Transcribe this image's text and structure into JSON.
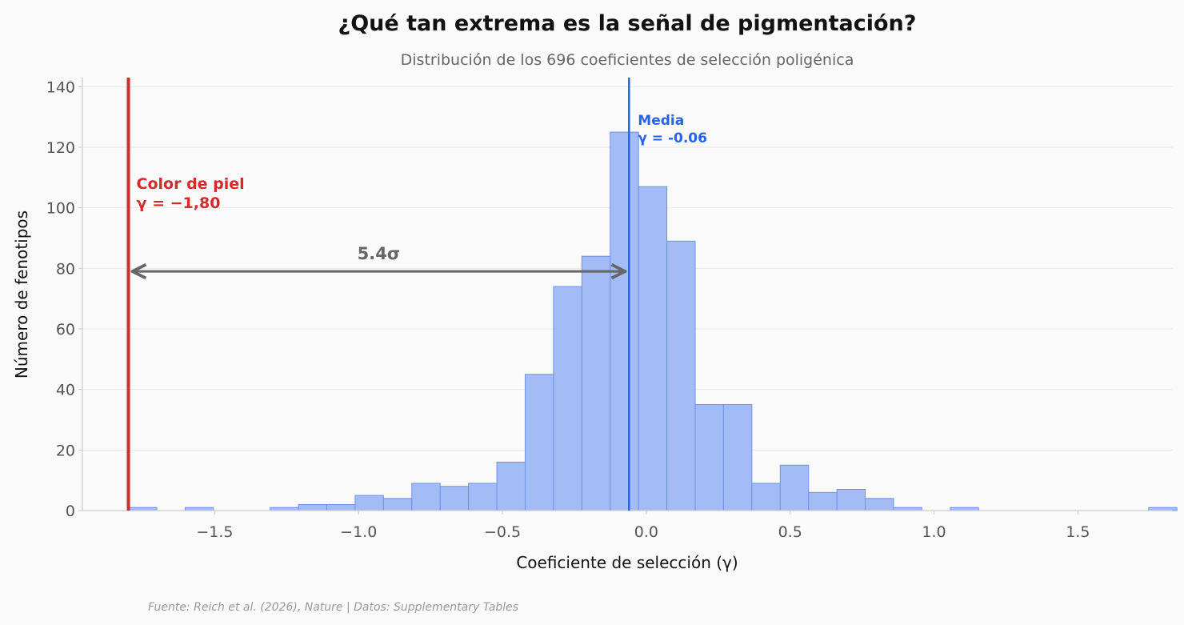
{
  "title": "¿Qué tan extrema es la señal de pigmentación?",
  "subtitle": "Distribución de los 696 coeficientes de selección poligénica",
  "source": "Fuente: Reich et al. (2026), Nature | Datos: Supplementary Tables",
  "colors": {
    "bar_fill": "#a4bcf5",
    "bar_stroke": "#6d93ec",
    "mean_line": "#2563eb",
    "highlight": "#d42a2a",
    "arrow": "#666666",
    "grid": "#ebebeb",
    "axis": "#cccccc",
    "tick_text": "#555555"
  },
  "chart_data": {
    "type": "histogram",
    "xlabel": "Coeficiente de selección (γ)",
    "ylabel": "Número de fenotipos",
    "xlim": [
      -1.96,
      1.83
    ],
    "ylim": [
      0,
      143
    ],
    "bin_width": 0.0985,
    "bin_start": -1.8,
    "counts": [
      1,
      0,
      1,
      0,
      0,
      1,
      2,
      2,
      5,
      4,
      9,
      8,
      9,
      16,
      45,
      74,
      84,
      125,
      107,
      89,
      35,
      35,
      9,
      15,
      6,
      7,
      4,
      1,
      0,
      1,
      0,
      0,
      0,
      0,
      0,
      0,
      1
    ],
    "x_ticks": [
      {
        "value": -1.5,
        "label": "−1.5"
      },
      {
        "value": -1.0,
        "label": "−1.0"
      },
      {
        "value": -0.5,
        "label": "−0.5"
      },
      {
        "value": 0.0,
        "label": "0.0"
      },
      {
        "value": 0.5,
        "label": "0.5"
      },
      {
        "value": 1.0,
        "label": "1.0"
      },
      {
        "value": 1.5,
        "label": "1.5"
      }
    ],
    "y_ticks": [
      0,
      20,
      40,
      60,
      80,
      100,
      120,
      140
    ],
    "grid": "y",
    "mean": {
      "value": -0.06,
      "label_line1": "Media",
      "label_line2": "γ = -0.06"
    },
    "highlight": {
      "value": -1.8,
      "label_line1": "Color de piel",
      "label_line2": "γ = −1,80"
    },
    "arrow": {
      "from": -1.8,
      "to": -0.06,
      "y": 79,
      "label": "5.4σ"
    }
  }
}
